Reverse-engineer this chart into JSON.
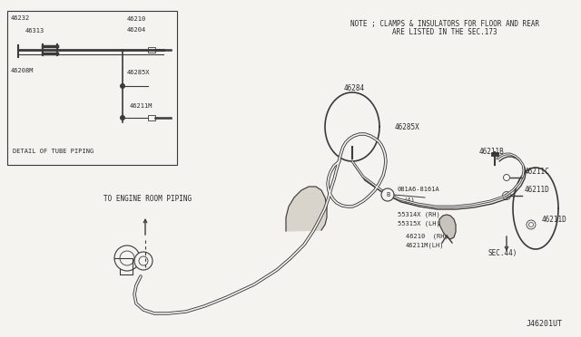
{
  "bg_color": "#f5f3ef",
  "line_color": "#3a3a3a",
  "text_color": "#2a2a2a",
  "note_line1": "NOTE ; CLAMPS & INSULATORS FOR FLOOR AND REAR",
  "note_line2": "ARE LISTED IN THE SEC.173",
  "footer": "J46201UT",
  "detail_label": "DETAIL OF TUBE PIPING",
  "engine_label": "TO ENGINE ROOM PIPING"
}
